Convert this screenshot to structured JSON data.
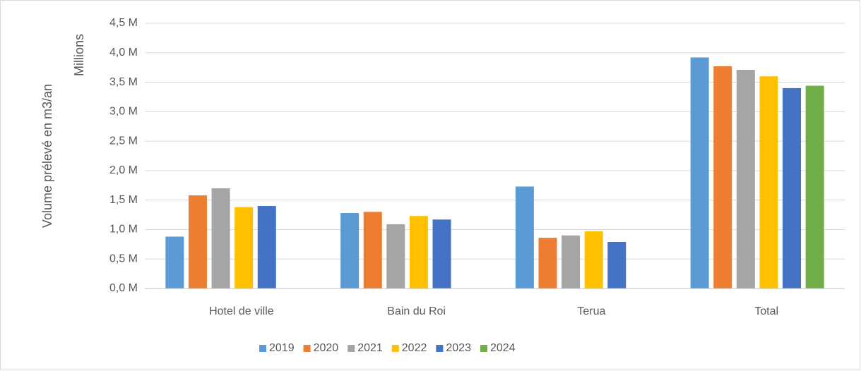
{
  "chart_data": {
    "type": "bar",
    "y_label": "Volume prélevé en m3/an",
    "y_unit_label": "Millions",
    "categories": [
      "Hotel de ville",
      "Bain du Roi",
      "Terua",
      "Total"
    ],
    "series": [
      {
        "name": "2019",
        "color": "#5b9bd5",
        "values": [
          0.88,
          1.28,
          1.73,
          3.92
        ]
      },
      {
        "name": "2020",
        "color": "#ed7d31",
        "values": [
          1.58,
          1.3,
          0.86,
          3.77
        ]
      },
      {
        "name": "2021",
        "color": "#a5a5a5",
        "values": [
          1.7,
          1.09,
          0.9,
          3.71
        ]
      },
      {
        "name": "2022",
        "color": "#ffc000",
        "values": [
          1.38,
          1.23,
          0.97,
          3.6
        ]
      },
      {
        "name": "2023",
        "color": "#4472c4",
        "values": [
          1.4,
          1.17,
          0.79,
          3.4
        ]
      },
      {
        "name": "2024",
        "color": "#70ad47",
        "values": [
          null,
          null,
          null,
          3.44
        ]
      }
    ],
    "ylim": [
      0,
      4.5
    ],
    "yticks": [
      {
        "value": 0,
        "label": "0,0 M"
      },
      {
        "value": 0.5,
        "label": "0,5 M"
      },
      {
        "value": 1,
        "label": "1,0 M"
      },
      {
        "value": 1.5,
        "label": "1,5 M"
      },
      {
        "value": 2,
        "label": "2,0 M"
      },
      {
        "value": 2.5,
        "label": "2,5 M"
      },
      {
        "value": 3,
        "label": "3,0 M"
      },
      {
        "value": 3.5,
        "label": "3,5 M"
      },
      {
        "value": 4,
        "label": "4,0 M"
      },
      {
        "value": 4.5,
        "label": "4,5 M"
      }
    ],
    "grid": true,
    "legend": "bottom"
  }
}
